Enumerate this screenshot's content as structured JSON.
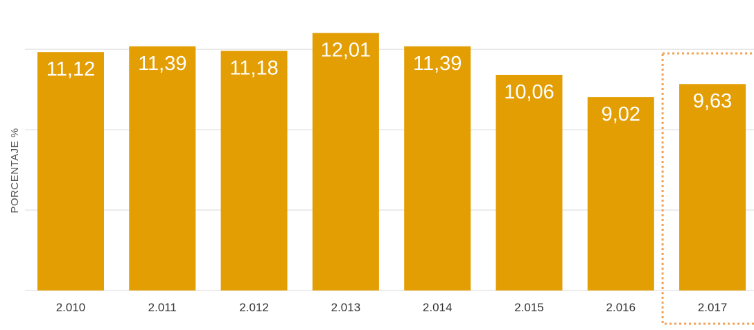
{
  "chart_data": {
    "type": "bar",
    "ylabel": "PORCENTAJE %",
    "xlabel": "",
    "categories": [
      "2.010",
      "2.011",
      "2.012",
      "2.013",
      "2.014",
      "2.015",
      "2.016",
      "2.017"
    ],
    "values": [
      11.12,
      11.39,
      11.18,
      12.01,
      11.39,
      10.06,
      9.02,
      9.63
    ],
    "data_labels": [
      "11,12",
      "11,39",
      "11,18",
      "12,01",
      "11,39",
      "10,06",
      "9,02",
      "9,63"
    ],
    "ylim": [
      0,
      15
    ],
    "grid": true,
    "highlighted_category": "2.017",
    "colors": {
      "bar": "#E39E04",
      "grid": "#D9D9D9",
      "highlight_border": "#F0A050"
    }
  }
}
